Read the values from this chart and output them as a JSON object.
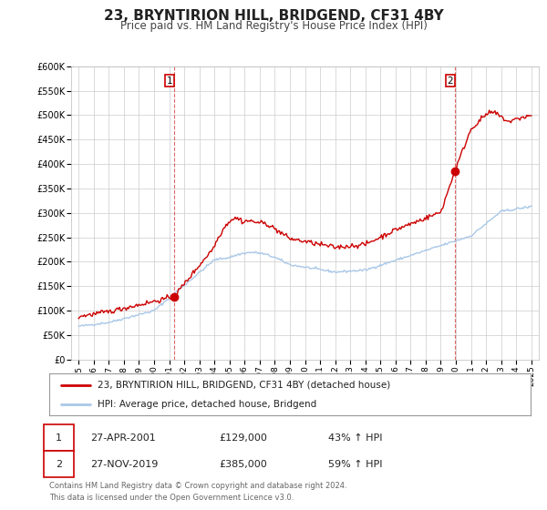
{
  "title": "23, BRYNTIRION HILL, BRIDGEND, CF31 4BY",
  "subtitle": "Price paid vs. HM Land Registry's House Price Index (HPI)",
  "title_fontsize": 11,
  "subtitle_fontsize": 8.5,
  "hpi_color": "#aac8e8",
  "price_color": "#cc0000",
  "marker_color": "#cc0000",
  "background_color": "#ffffff",
  "plot_bg_color": "#ffffff",
  "grid_color": "#cccccc",
  "ylim": [
    0,
    600000
  ],
  "yticks": [
    0,
    50000,
    100000,
    150000,
    200000,
    250000,
    300000,
    350000,
    400000,
    450000,
    500000,
    550000,
    600000
  ],
  "ytick_labels": [
    "£0",
    "£50K",
    "£100K",
    "£150K",
    "£200K",
    "£250K",
    "£300K",
    "£350K",
    "£400K",
    "£450K",
    "£500K",
    "£550K",
    "£600K"
  ],
  "xlim_start": 1994.5,
  "xlim_end": 2025.5,
  "xticks": [
    1995,
    1996,
    1997,
    1998,
    1999,
    2000,
    2001,
    2002,
    2003,
    2004,
    2005,
    2006,
    2007,
    2008,
    2009,
    2010,
    2011,
    2012,
    2013,
    2014,
    2015,
    2016,
    2017,
    2018,
    2019,
    2020,
    2021,
    2022,
    2023,
    2024,
    2025
  ],
  "sale1_x": 2001.32,
  "sale1_y": 129000,
  "sale2_x": 2019.92,
  "sale2_y": 385000,
  "sale1_date": "27-APR-2001",
  "sale1_price": "£129,000",
  "sale1_hpi": "43% ↑ HPI",
  "sale2_date": "27-NOV-2019",
  "sale2_price": "£385,000",
  "sale2_hpi": "59% ↑ HPI",
  "legend_line1": "23, BRYNTIRION HILL, BRIDGEND, CF31 4BY (detached house)",
  "legend_line2": "HPI: Average price, detached house, Bridgend",
  "footer_line1": "Contains HM Land Registry data © Crown copyright and database right 2024.",
  "footer_line2": "This data is licensed under the Open Government Licence v3.0."
}
